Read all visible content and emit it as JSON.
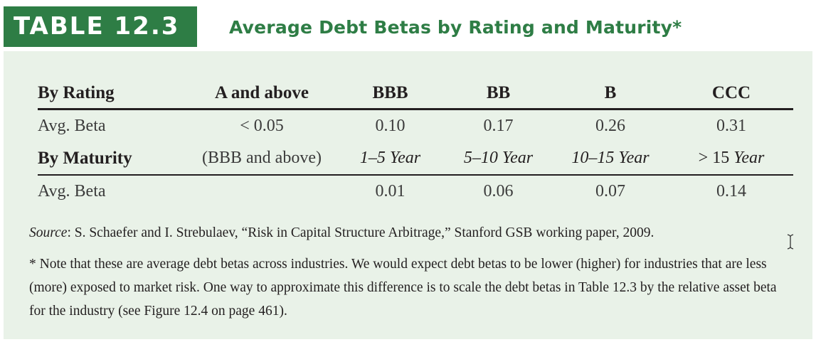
{
  "header": {
    "label": "TABLE 12.3",
    "title": "Average Debt Betas by Rating and Maturity*"
  },
  "table": {
    "rating_header": {
      "label": "By Rating",
      "columns": [
        "A and above",
        "BBB",
        "BB",
        "B",
        "CCC"
      ]
    },
    "rating_row": {
      "label": "Avg. Beta",
      "values": [
        "< 0.05",
        "0.10",
        "0.17",
        "0.26",
        "0.31"
      ]
    },
    "maturity_header": {
      "label": "By Maturity",
      "first_col": "(BBB and above)",
      "col2": "1–5 Year",
      "col3": "5–10 Year",
      "col4": "10–15 Year",
      "col5_symbol": "> 15",
      "col5_text": "Year"
    },
    "maturity_row": {
      "label": "Avg. Beta",
      "values": [
        "",
        "0.01",
        "0.06",
        "0.07",
        "0.14"
      ]
    }
  },
  "source": {
    "label": "Source",
    "text": ": S. Schaefer and I. Strebulaev, “Risk in Capital Structure Arbitrage,” Stanford GSB working paper, 2009."
  },
  "note": {
    "text": "* Note that these are average debt betas across industries. We would expect debt betas to be lower (higher) for industries that are less (more) exposed to market risk. One way to approximate this difference is to scale the debt betas in Table 12.3 by the relative asset beta for the industry (see Figure 12.4 on page 461)."
  },
  "icons": {
    "cursor": "text-cursor-icon"
  }
}
